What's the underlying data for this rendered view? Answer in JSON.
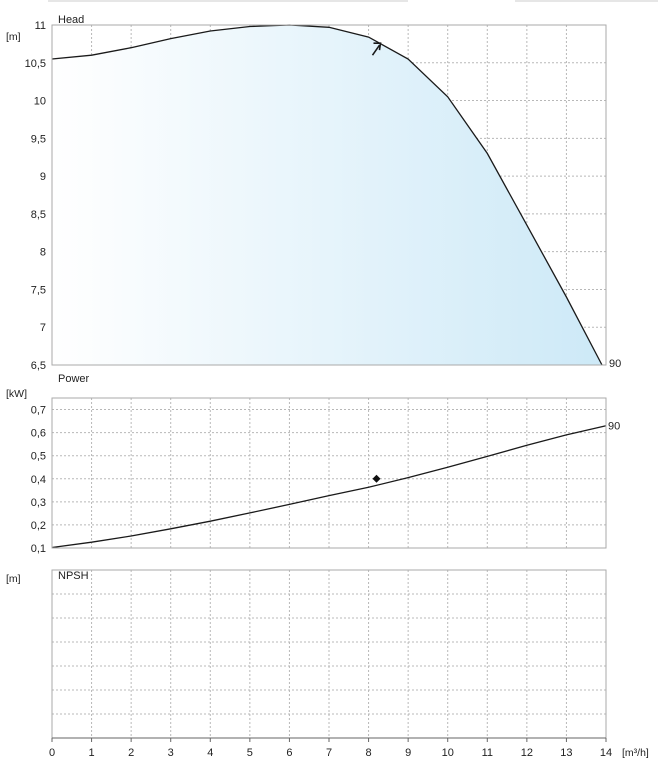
{
  "chart_data": [
    {
      "type": "area",
      "title": "Head",
      "ylabel": "[m]",
      "ylim": [
        6.5,
        11
      ],
      "y_ticks": [
        "6,5",
        "7",
        "7,5",
        "8",
        "8,5",
        "9",
        "9,5",
        "10",
        "10,5",
        "11"
      ],
      "xlim": [
        0,
        14
      ],
      "series": [
        {
          "name": "90",
          "x": [
            0,
            1,
            2,
            3,
            4,
            5,
            6,
            7,
            8,
            9,
            10,
            11,
            12,
            13,
            13.9
          ],
          "values": [
            10.55,
            10.6,
            10.7,
            10.82,
            10.92,
            10.98,
            11.0,
            10.97,
            10.84,
            10.55,
            10.05,
            9.3,
            8.35,
            7.4,
            6.5
          ]
        }
      ],
      "duty_point": {
        "x": 8.2,
        "y": 10.72
      },
      "fill_color": "#cde9f7",
      "line_color": "#1a1a1a"
    },
    {
      "type": "line",
      "title": "Power",
      "ylabel": "[kW]",
      "ylim": [
        0.1,
        0.75
      ],
      "y_ticks": [
        "0,1",
        "0,2",
        "0,3",
        "0,4",
        "0,5",
        "0,6",
        "0,7"
      ],
      "xlim": [
        0,
        14
      ],
      "series": [
        {
          "name": "90",
          "x": [
            0,
            1,
            2,
            3,
            4,
            5,
            6,
            7,
            8,
            9,
            10,
            11,
            12,
            13,
            14
          ],
          "values": [
            0.102,
            0.125,
            0.152,
            0.183,
            0.216,
            0.252,
            0.289,
            0.327,
            0.363,
            0.405,
            0.45,
            0.497,
            0.545,
            0.59,
            0.63
          ]
        }
      ],
      "duty_point": {
        "x": 8.2,
        "y": 0.4
      },
      "line_color": "#1a1a1a"
    },
    {
      "type": "line",
      "title": "NPSH",
      "ylabel": "[m]",
      "xlim": [
        0,
        14
      ],
      "series": []
    }
  ],
  "x_axis": {
    "ticks": [
      "0",
      "1",
      "2",
      "3",
      "4",
      "5",
      "6",
      "7",
      "8",
      "9",
      "10",
      "11",
      "12",
      "13",
      "14"
    ],
    "unit": "[m³/h]"
  },
  "colors": {
    "grid": "#b8b8b8",
    "frame": "#aaaaaa",
    "area_fill": "#cde9f7"
  }
}
